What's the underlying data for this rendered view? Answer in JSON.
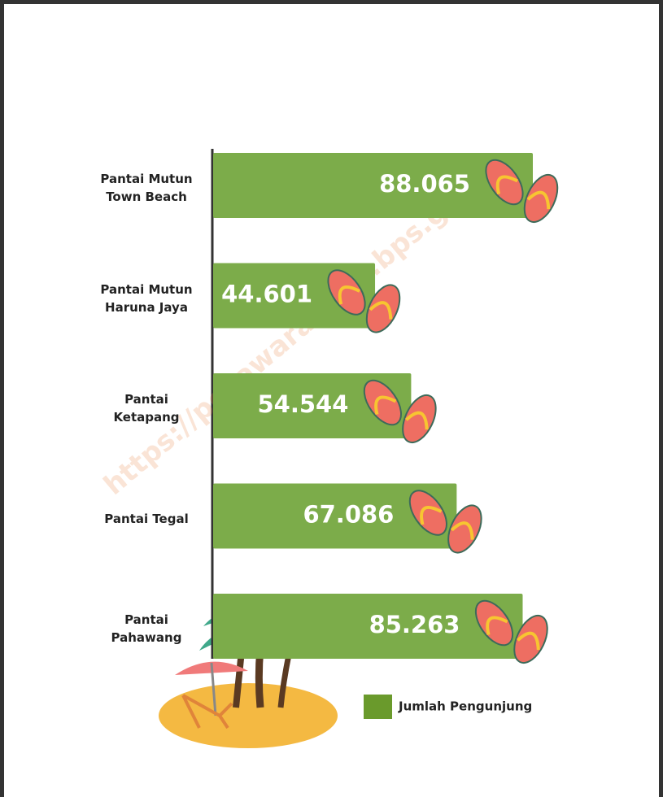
{
  "chart_data": {
    "type": "bar",
    "orientation": "horizontal",
    "categories": [
      "Pantai Mutun\nTown Beach",
      "Pantai Mutun\nHaruna Jaya",
      "Pantai\nKetapang",
      "Pantai Tegal",
      "Pantai\nPahawang"
    ],
    "series": [
      {
        "name": "Jumlah Pengunjung",
        "color": "#7cac4a",
        "values": [
          88065,
          44601,
          54544,
          67086,
          85263
        ],
        "value_labels": [
          "88.065",
          "44.601",
          "54.544",
          "67.086",
          "85.263"
        ]
      }
    ],
    "legend_color": "#6a9a2c",
    "watermark": "https://pesawarankab.bps.go.id"
  }
}
